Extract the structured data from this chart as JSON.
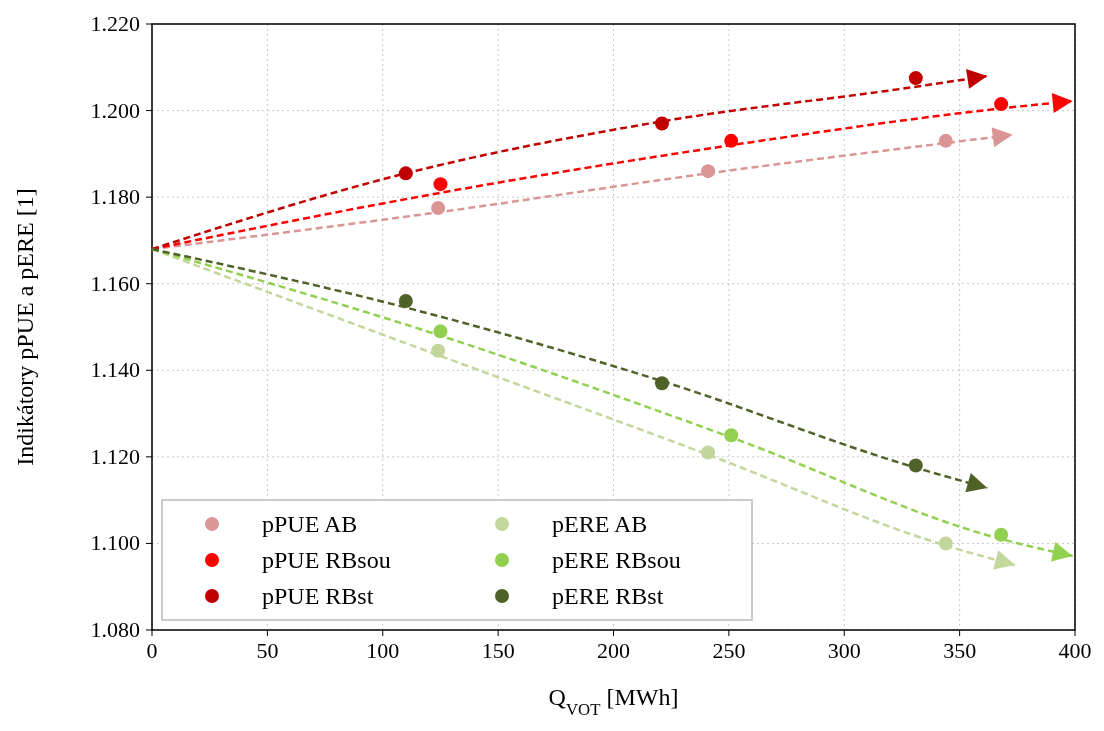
{
  "chart_data": {
    "type": "scatter",
    "xlabel": "Q$_{VOT}$ [MWh]",
    "ylabel": "Indikátory pPUE a pERE [1]",
    "xlim": [
      0,
      400
    ],
    "xticks": [
      0,
      50,
      100,
      150,
      200,
      250,
      300,
      350,
      400
    ],
    "ylim": [
      1.08,
      1.22
    ],
    "yticks": [
      {
        "value": 1.08,
        "label": "1.080"
      },
      {
        "value": 1.1,
        "label": "1.100"
      },
      {
        "value": 1.12,
        "label": "1.120"
      },
      {
        "value": 1.14,
        "label": "1.140"
      },
      {
        "value": 1.16,
        "label": "1.160"
      },
      {
        "value": 1.18,
        "label": "1.180"
      },
      {
        "value": 1.2,
        "label": "1.200"
      },
      {
        "value": 1.22,
        "label": "1.220"
      }
    ],
    "grid": true,
    "legend": "bottom left",
    "marker": "circle",
    "line_style": "dashed",
    "series": [
      {
        "name": "pPUE AB",
        "color": "#d99694",
        "x": [
          124,
          241,
          344
        ],
        "values": [
          1.1775,
          1.186,
          1.193
        ]
      },
      {
        "name": "pPUE RBsou",
        "color": "#ff0000",
        "x": [
          125,
          251,
          368
        ],
        "values": [
          1.183,
          1.193,
          1.2015
        ]
      },
      {
        "name": "pPUE RBst",
        "color": "#c00000",
        "x": [
          110,
          221,
          331
        ],
        "values": [
          1.1855,
          1.197,
          1.2075
        ]
      },
      {
        "name": "pERE AB",
        "color": "#c3d69b",
        "x": [
          124,
          241,
          344
        ],
        "values": [
          1.1445,
          1.121,
          1.1
        ]
      },
      {
        "name": "pERE RBsou",
        "color": "#92d050",
        "x": [
          125,
          251,
          368
        ],
        "values": [
          1.149,
          1.125,
          1.102
        ]
      },
      {
        "name": "pERE RBst",
        "color": "#4f6228",
        "x": [
          110,
          221,
          331
        ],
        "values": [
          1.156,
          1.137,
          1.118
        ]
      },
      {
        "type": "line",
        "marker": "none",
        "color": "#d99694",
        "x": [
          0,
          124,
          241,
          344,
          373
        ],
        "values": [
          1.168,
          1.1765,
          1.1855,
          1.1925,
          1.1944
        ]
      },
      {
        "type": "line",
        "marker": "none",
        "color": "#ff0000",
        "x": [
          0,
          125,
          251,
          368,
          399
        ],
        "values": [
          1.168,
          1.181,
          1.192,
          1.2005,
          1.2022
        ]
      },
      {
        "type": "line",
        "marker": "none",
        "color": "#c00000",
        "x": [
          0,
          110,
          221,
          331,
          362
        ],
        "values": [
          1.168,
          1.1855,
          1.1975,
          1.2055,
          1.208
        ]
      },
      {
        "type": "line",
        "marker": "none",
        "color": "#c3d69b",
        "x": [
          0,
          124,
          241,
          344,
          374
        ],
        "values": [
          1.168,
          1.1435,
          1.1205,
          1.0995,
          1.095
        ]
      },
      {
        "type": "line",
        "marker": "none",
        "color": "#92d050",
        "x": [
          0,
          125,
          251,
          368,
          399
        ],
        "values": [
          1.168,
          1.148,
          1.1245,
          1.101,
          1.0971
        ]
      },
      {
        "type": "line",
        "marker": "none",
        "color": "#4f6228",
        "x": [
          0,
          110,
          221,
          331,
          362
        ],
        "values": [
          1.168,
          1.1545,
          1.1375,
          1.1175,
          1.1128
        ]
      }
    ]
  }
}
